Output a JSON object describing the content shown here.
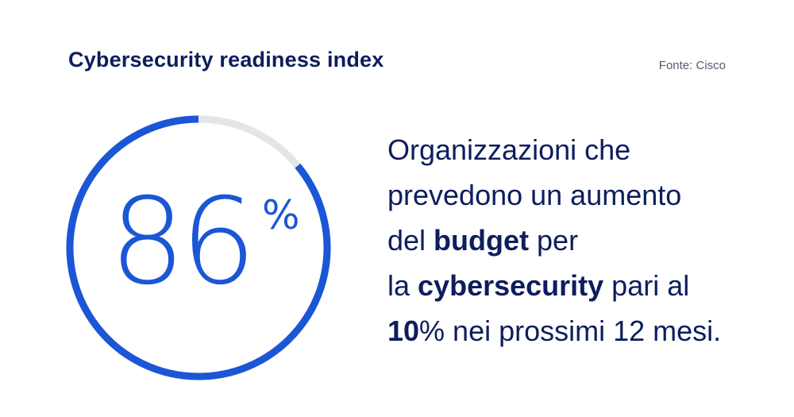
{
  "header": {
    "title": "Cybersecurity readiness index",
    "source": "Fonte: Cisco"
  },
  "chart_data": {
    "type": "gauge",
    "value": 86,
    "max": 100,
    "value_label": "86",
    "unit_label": "%",
    "colors": {
      "fill": "#1a56d6",
      "track": "#e5e5e8"
    }
  },
  "description": {
    "line1": "Organizzazioni che",
    "line2": "prevedono un aumento",
    "line3_a": "del ",
    "line3_b": "budget",
    "line3_c": " per",
    "line4_a": "la ",
    "line4_b": "cybersecurity",
    "line4_c": " pari al",
    "line5_a": "10",
    "line5_b": "% nei prossimi 12 mesi."
  },
  "colors": {
    "title": "#0d1d5e",
    "accent": "#1a56d6"
  }
}
